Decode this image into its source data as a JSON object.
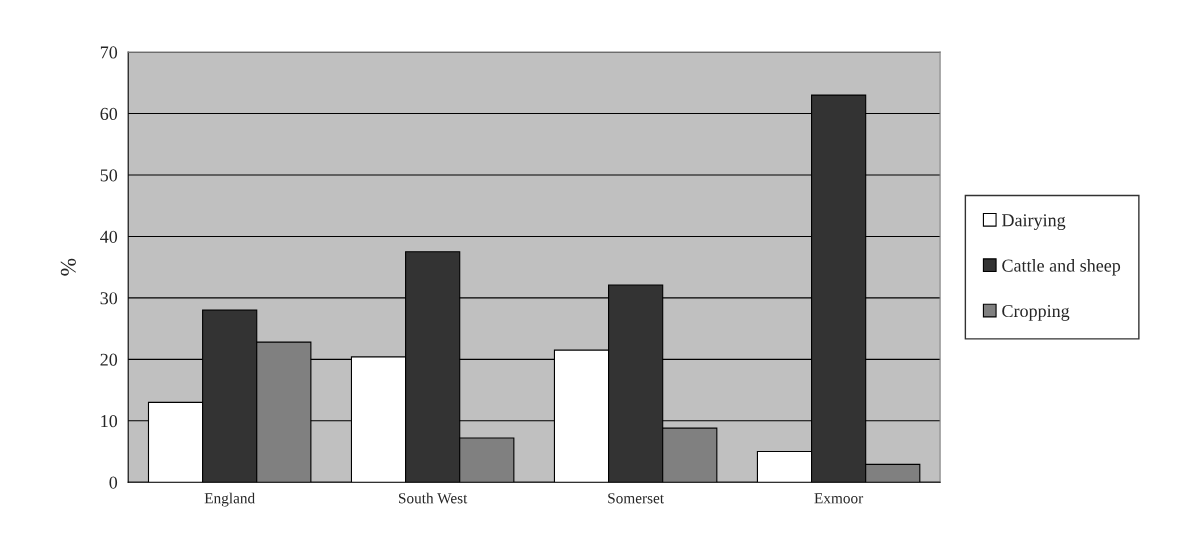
{
  "chart_data": {
    "type": "bar",
    "ylabel": "%",
    "categories": [
      "England",
      "South West",
      "Somerset",
      "Exmoor"
    ],
    "series": [
      {
        "name": "Dairying",
        "color": "#ffffff",
        "values": [
          13.0,
          20.4,
          21.5,
          5.0
        ]
      },
      {
        "name": "Cattle and sheep",
        "color": "#333333",
        "values": [
          28.0,
          37.5,
          32.1,
          63.0
        ]
      },
      {
        "name": "Cropping",
        "color": "#808080",
        "values": [
          22.8,
          7.2,
          8.8,
          2.9
        ]
      }
    ],
    "ylim": [
      0,
      70
    ],
    "yticks": [
      0,
      10,
      20,
      30,
      40,
      50,
      60,
      70
    ],
    "grid": "y",
    "legend": "right"
  }
}
